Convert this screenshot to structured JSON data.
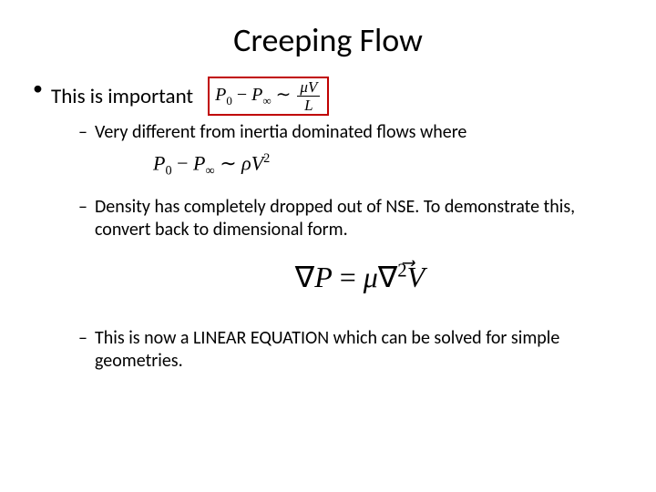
{
  "title": "Creeping Flow",
  "bullet_lvl1": "This is important",
  "eq_boxed": {
    "border_color": "#c00000",
    "lhs_P0": "P",
    "lhs_P0_sub": "0",
    "minus": " − ",
    "lhs_Pinf": "P",
    "lhs_Pinf_sub": "∞",
    "rel": " ∼ ",
    "frac_num": "μV",
    "frac_den": "L"
  },
  "sub_bullets": {
    "b1": "Very different from inertia dominated flows where",
    "b2": "Density has completely dropped out of NSE.  To demonstrate this, convert back to dimensional form.",
    "b3": "This is now a LINEAR EQUATION which can be solved for simple geometries."
  },
  "eq_inertia": {
    "P0": "P",
    "P0_sub": "0",
    "minus": " − ",
    "Pinf": "P",
    "Pinf_sub": "∞",
    "rel": " ∼ ",
    "rho": "ρ",
    "V": "V",
    "exp": "2"
  },
  "eq_nse": {
    "nabla1": "∇",
    "P": "P",
    "eq": " = ",
    "mu": "μ",
    "nabla2": "∇",
    "exp": "2",
    "V": "V"
  },
  "colors": {
    "text": "#000000",
    "background": "#ffffff"
  },
  "fonts": {
    "body": "Calibri",
    "math": "Cambria Math"
  }
}
